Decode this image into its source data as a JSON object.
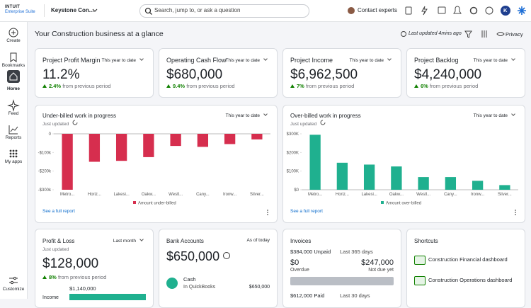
{
  "header": {
    "brand": "INTUIT",
    "product": "Enterprise Suite",
    "company": "Keystone Con...",
    "search_placeholder": "Search, jump to, or ask a question",
    "contact": "Contact experts",
    "avatar": "K"
  },
  "nav": [
    "Create",
    "Bookmarks",
    "Home",
    "Feed",
    "Reports",
    "My apps"
  ],
  "nav_bottom": "Customize",
  "page": {
    "title": "Your Construction business at a glance",
    "last_updated": "Last updated 4mins ago",
    "privacy": "Privacy"
  },
  "kpis": [
    {
      "title": "Project Profit Margin",
      "period": "This year to date",
      "value": "11.2%",
      "change": "2.4%",
      "change_text": "from previous period"
    },
    {
      "title": "Operating Cash Flow",
      "period": "This year to date",
      "value": "$680,000",
      "change": "9.4%",
      "change_text": "from previous period"
    },
    {
      "title": "Project Income",
      "period": "This year to date",
      "value": "$6,962,500",
      "change": "7%",
      "change_text": "from previous period"
    },
    {
      "title": "Project Backlog",
      "period": "This year to date",
      "value": "$4,240,000",
      "change": "6%",
      "change_text": "from previous period"
    }
  ],
  "charts": [
    {
      "type": "bar",
      "title": "Under-billed work in progress",
      "period": "This year to date",
      "status": "Just updated",
      "categories": [
        "Metro...",
        "Horiz...",
        "Lakesi...",
        "Oakw...",
        "Westl...",
        "Cany...",
        "Ironw...",
        "Silver..."
      ],
      "series": [
        {
          "name": "Amount under-billed",
          "color": "#d62e4e",
          "values": [
            -300000,
            -150000,
            -145000,
            -125000,
            -65000,
            -70000,
            -55000,
            -30000
          ]
        }
      ],
      "ylim": [
        -300000,
        0
      ],
      "yticks": [
        0,
        {
          "value": -100000,
          "label": "-$100k"
        },
        {
          "value": -200000,
          "label": "-$200k"
        },
        {
          "value": -300000,
          "label": "-$300k"
        }
      ],
      "grid": false,
      "link": "See a full report"
    },
    {
      "type": "bar",
      "title": "Over-billed work in progress",
      "period": "This year to date",
      "status": "Just updated",
      "categories": [
        "Metro...",
        "Horiz...",
        "Lakesi...",
        "Oakw...",
        "Westl...",
        "Cany...",
        "Ironw...",
        "Silver..."
      ],
      "series": [
        {
          "name": "Amount over-billed",
          "color": "#1fb08f",
          "values": [
            295000,
            145000,
            135000,
            125000,
            68000,
            68000,
            48000,
            25000
          ]
        }
      ],
      "ylim": [
        0,
        300000
      ],
      "yticks": [
        {
          "value": 0,
          "label": "$0"
        },
        {
          "value": 100000,
          "label": "$100K"
        },
        {
          "value": 200000,
          "label": "$200K"
        },
        {
          "value": 300000,
          "label": "$300K"
        }
      ],
      "grid": false,
      "link": "See a full report"
    }
  ],
  "profit_loss": {
    "title": "Profit & Loss",
    "period": "Last month",
    "status": "Just updated",
    "value": "$128,000",
    "change": "8%",
    "change_text": "from previous period",
    "income_value": "$1,140,000",
    "income_label": "Income"
  },
  "bank": {
    "title": "Bank Accounts",
    "period": "As of today",
    "value": "$650,000",
    "account": "Cash",
    "source": "In QuickBooks",
    "account_value": "$650,000"
  },
  "invoices": {
    "title": "Invoices",
    "unpaid": "$384,000 Unpaid",
    "unpaid_period": "Last 365 days",
    "overdue_value": "$0",
    "overdue_label": "Overdue",
    "not_due_value": "$247,000",
    "not_due_label": "Not due yet",
    "paid": "$612,000 Paid",
    "paid_period": "Last 30 days"
  },
  "shortcuts": {
    "title": "Shortcuts",
    "items": [
      "Construction Financial dashboard",
      "Construction Operations dashboard"
    ]
  }
}
